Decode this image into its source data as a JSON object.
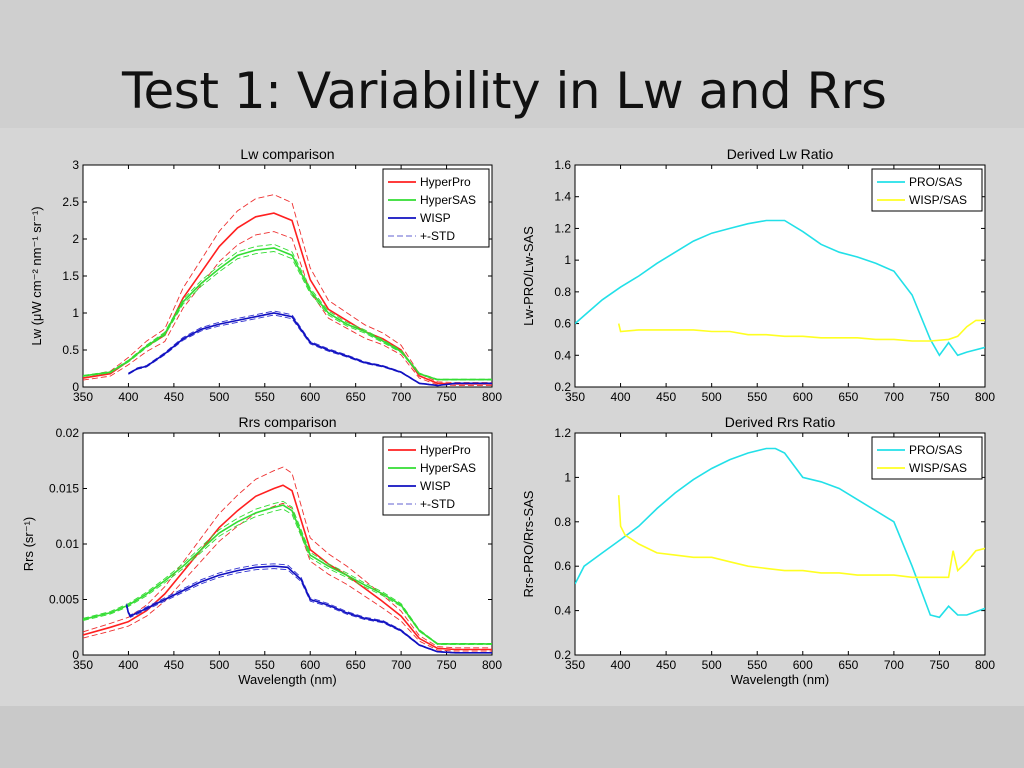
{
  "slide": {
    "title": "Test 1: Variability in Lw and Rrs"
  },
  "colors": {
    "hyperpro": "#ff2020",
    "hypersas": "#33dd33",
    "wisp": "#1010c0",
    "std": "#ee3030",
    "pro_sas": "#22e0e8",
    "wisp_sas": "#ffff22"
  },
  "chart_data": [
    {
      "id": "lw",
      "type": "line",
      "title": "Lw comparison",
      "xlabel": "",
      "ylabel": "Lw (μW cm⁻² nm⁻¹ sr⁻¹)",
      "xlim": [
        350,
        800
      ],
      "ylim": [
        0,
        3
      ],
      "xticks": [
        350,
        400,
        450,
        500,
        550,
        600,
        650,
        700,
        750,
        800
      ],
      "yticks": [
        0,
        0.5,
        1,
        1.5,
        2,
        2.5,
        3
      ],
      "ytick_labels": [
        "0",
        "0.5",
        "1",
        "1.5",
        "2",
        "2.5",
        "3"
      ],
      "legend": [
        "HyperPro",
        "HyperSAS",
        "WISP",
        "+-STD"
      ],
      "legend_position": "top-right",
      "series": [
        {
          "name": "HyperPro",
          "color": "#ff2020",
          "x": [
            350,
            380,
            400,
            420,
            440,
            460,
            480,
            500,
            520,
            540,
            560,
            580,
            600,
            620,
            640,
            660,
            680,
            700,
            720,
            740,
            760,
            780,
            800
          ],
          "y": [
            0.12,
            0.18,
            0.35,
            0.55,
            0.7,
            1.2,
            1.55,
            1.9,
            2.15,
            2.3,
            2.35,
            2.25,
            1.45,
            1.05,
            0.9,
            0.75,
            0.65,
            0.5,
            0.15,
            0.05,
            0.04,
            0.04,
            0.04
          ]
        },
        {
          "name": "HyperSAS",
          "color": "#33dd33",
          "x": [
            350,
            380,
            400,
            420,
            440,
            460,
            480,
            500,
            520,
            540,
            560,
            580,
            600,
            620,
            640,
            660,
            680,
            700,
            720,
            740,
            760,
            780,
            800
          ],
          "y": [
            0.15,
            0.2,
            0.35,
            0.55,
            0.72,
            1.15,
            1.4,
            1.6,
            1.78,
            1.85,
            1.88,
            1.78,
            1.3,
            1.0,
            0.85,
            0.75,
            0.62,
            0.48,
            0.18,
            0.1,
            0.1,
            0.1,
            0.1
          ]
        },
        {
          "name": "WISP",
          "color": "#1010c0",
          "x": [
            400,
            410,
            420,
            440,
            460,
            480,
            500,
            520,
            540,
            560,
            580,
            600,
            620,
            640,
            660,
            680,
            700,
            720,
            740,
            760,
            780,
            800
          ],
          "y": [
            0.18,
            0.25,
            0.28,
            0.45,
            0.65,
            0.78,
            0.85,
            0.9,
            0.95,
            1.0,
            0.95,
            0.6,
            0.5,
            0.42,
            0.33,
            0.28,
            0.2,
            0.05,
            0.02,
            0.05,
            0.05,
            0.05
          ]
        }
      ]
    },
    {
      "id": "lwratio",
      "type": "line",
      "title": "Derived Lw Ratio",
      "xlabel": "",
      "ylabel": "Lw-PRO/Lw-SAS",
      "xlim": [
        350,
        800
      ],
      "ylim": [
        0.2,
        1.6
      ],
      "xticks": [
        350,
        400,
        450,
        500,
        550,
        600,
        650,
        700,
        750,
        800
      ],
      "yticks": [
        0.2,
        0.4,
        0.6,
        0.8,
        1,
        1.2,
        1.4,
        1.6
      ],
      "ytick_labels": [
        "0.2",
        "0.4",
        "0.6",
        "0.8",
        "1",
        "1.2",
        "1.4",
        "1.6"
      ],
      "legend": [
        "PRO/SAS",
        "WISP/SAS"
      ],
      "legend_position": "top-right",
      "series": [
        {
          "name": "PRO/SAS",
          "color": "#22e0e8",
          "x": [
            350,
            360,
            380,
            400,
            420,
            440,
            460,
            480,
            500,
            520,
            540,
            560,
            580,
            600,
            620,
            640,
            660,
            680,
            700,
            720,
            740,
            750,
            760,
            770,
            780,
            800
          ],
          "y": [
            0.6,
            0.65,
            0.75,
            0.83,
            0.9,
            0.98,
            1.05,
            1.12,
            1.17,
            1.2,
            1.23,
            1.25,
            1.25,
            1.18,
            1.1,
            1.05,
            1.02,
            0.98,
            0.93,
            0.78,
            0.5,
            0.4,
            0.48,
            0.4,
            0.42,
            0.45
          ]
        },
        {
          "name": "WISP/SAS",
          "color": "#ffff22",
          "x": [
            398,
            400,
            420,
            440,
            460,
            480,
            500,
            520,
            540,
            560,
            580,
            600,
            620,
            640,
            660,
            680,
            700,
            720,
            740,
            760,
            770,
            780,
            790,
            800
          ],
          "y": [
            0.6,
            0.55,
            0.56,
            0.56,
            0.56,
            0.56,
            0.55,
            0.55,
            0.53,
            0.53,
            0.52,
            0.52,
            0.51,
            0.51,
            0.51,
            0.5,
            0.5,
            0.49,
            0.49,
            0.5,
            0.52,
            0.58,
            0.62,
            0.62
          ]
        }
      ]
    },
    {
      "id": "rrs",
      "type": "line",
      "title": "Rrs comparison",
      "xlabel": "Wavelength (nm)",
      "ylabel": "Rrs (sr⁻¹)",
      "xlim": [
        350,
        800
      ],
      "ylim": [
        0,
        0.02
      ],
      "xticks": [
        350,
        400,
        450,
        500,
        550,
        600,
        650,
        700,
        750,
        800
      ],
      "yticks": [
        0,
        0.005,
        0.01,
        0.015,
        0.02
      ],
      "ytick_labels": [
        "0",
        "0.005",
        "0.01",
        "0.015",
        "0.02"
      ],
      "legend": [
        "HyperPro",
        "HyperSAS",
        "WISP",
        "+-STD"
      ],
      "legend_position": "top-right",
      "series": [
        {
          "name": "HyperPro",
          "color": "#ff2020",
          "x": [
            350,
            380,
            400,
            420,
            440,
            460,
            480,
            500,
            520,
            540,
            560,
            570,
            580,
            600,
            620,
            640,
            660,
            680,
            700,
            720,
            740,
            760,
            780,
            800
          ],
          "y": [
            0.0018,
            0.0025,
            0.003,
            0.004,
            0.0055,
            0.0075,
            0.0095,
            0.0115,
            0.013,
            0.0143,
            0.015,
            0.0153,
            0.0148,
            0.0095,
            0.0082,
            0.0072,
            0.006,
            0.0048,
            0.0035,
            0.0015,
            0.0006,
            0.0005,
            0.0005,
            0.0005
          ]
        },
        {
          "name": "HyperSAS",
          "color": "#33dd33",
          "x": [
            350,
            380,
            400,
            420,
            440,
            460,
            480,
            500,
            520,
            540,
            560,
            570,
            580,
            600,
            620,
            640,
            660,
            680,
            700,
            720,
            740,
            760,
            780,
            800
          ],
          "y": [
            0.0032,
            0.0038,
            0.0045,
            0.0055,
            0.0067,
            0.008,
            0.0095,
            0.011,
            0.012,
            0.0128,
            0.0133,
            0.0135,
            0.013,
            0.009,
            0.008,
            0.0072,
            0.0063,
            0.0055,
            0.0045,
            0.0022,
            0.001,
            0.001,
            0.001,
            0.001
          ]
        },
        {
          "name": "WISP",
          "color": "#1010c0",
          "x": [
            398,
            400,
            402,
            410,
            420,
            440,
            460,
            480,
            500,
            520,
            540,
            560,
            575,
            590,
            600,
            620,
            640,
            660,
            680,
            700,
            720,
            740,
            760,
            780,
            800
          ],
          "y": [
            0.0045,
            0.0038,
            0.0035,
            0.0038,
            0.0042,
            0.005,
            0.0058,
            0.0066,
            0.0072,
            0.0076,
            0.0079,
            0.008,
            0.0079,
            0.0068,
            0.005,
            0.0045,
            0.0038,
            0.0033,
            0.003,
            0.0022,
            0.0009,
            0.0003,
            0.0002,
            0.0002,
            0.0002
          ]
        }
      ]
    },
    {
      "id": "rrsratio",
      "type": "line",
      "title": "Derived Rrs Ratio",
      "xlabel": "Wavelength (nm)",
      "ylabel": "Rrs-PRO/Rrs-SAS",
      "xlim": [
        350,
        800
      ],
      "ylim": [
        0.2,
        1.2
      ],
      "xticks": [
        350,
        400,
        450,
        500,
        550,
        600,
        650,
        700,
        750,
        800
      ],
      "yticks": [
        0.2,
        0.4,
        0.6,
        0.8,
        1,
        1.2
      ],
      "ytick_labels": [
        "0.2",
        "0.4",
        "0.6",
        "0.8",
        "1",
        "1.2"
      ],
      "legend": [
        "PRO/SAS",
        "WISP/SAS"
      ],
      "legend_position": "top-right",
      "series": [
        {
          "name": "PRO/SAS",
          "color": "#22e0e8",
          "x": [
            350,
            360,
            380,
            400,
            420,
            440,
            460,
            480,
            500,
            520,
            540,
            560,
            570,
            580,
            600,
            620,
            640,
            660,
            680,
            700,
            720,
            740,
            750,
            760,
            770,
            780,
            800
          ],
          "y": [
            0.52,
            0.6,
            0.66,
            0.72,
            0.78,
            0.86,
            0.93,
            0.99,
            1.04,
            1.08,
            1.11,
            1.13,
            1.13,
            1.11,
            1.0,
            0.98,
            0.95,
            0.9,
            0.85,
            0.8,
            0.6,
            0.38,
            0.37,
            0.42,
            0.38,
            0.38,
            0.41
          ]
        },
        {
          "name": "WISP/SAS",
          "color": "#ffff22",
          "x": [
            398,
            400,
            405,
            420,
            440,
            460,
            480,
            500,
            520,
            540,
            560,
            580,
            600,
            620,
            640,
            660,
            680,
            700,
            720,
            740,
            760,
            765,
            770,
            780,
            790,
            800
          ],
          "y": [
            0.92,
            0.78,
            0.74,
            0.7,
            0.66,
            0.65,
            0.64,
            0.64,
            0.62,
            0.6,
            0.59,
            0.58,
            0.58,
            0.57,
            0.57,
            0.56,
            0.56,
            0.56,
            0.55,
            0.55,
            0.55,
            0.67,
            0.58,
            0.62,
            0.67,
            0.68
          ]
        }
      ]
    }
  ]
}
